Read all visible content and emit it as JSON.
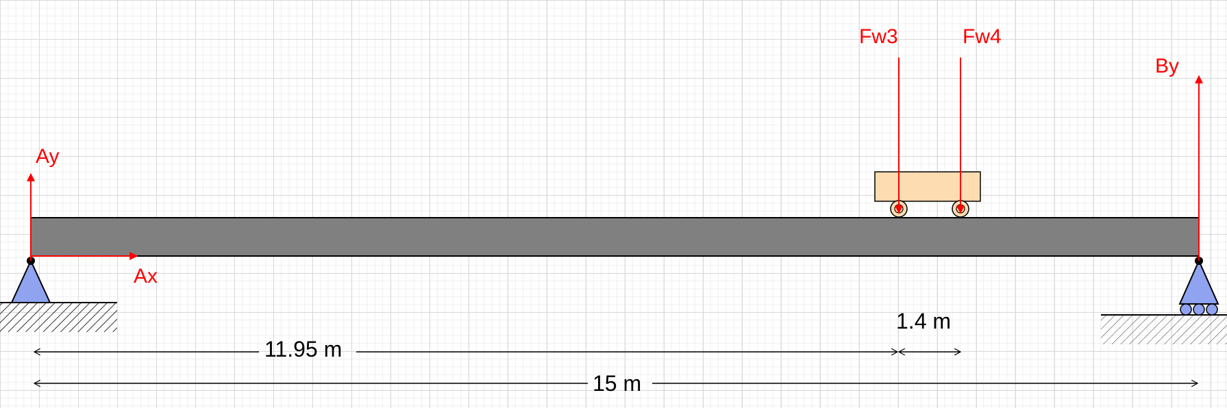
{
  "colors": {
    "force": "#ff0000",
    "beam_fill": "#808080",
    "support_fill": "#8fa3f0",
    "cart_fill": "#fcdcb0"
  },
  "forces": {
    "ay": "Ay",
    "ax": "Ax",
    "by": "By",
    "fw3": "Fw3",
    "fw4": "Fw4"
  },
  "dimensions": {
    "wheel_spacing": "1.4 m",
    "distance_to_fw3": "11.95 m",
    "span": "15 m"
  }
}
